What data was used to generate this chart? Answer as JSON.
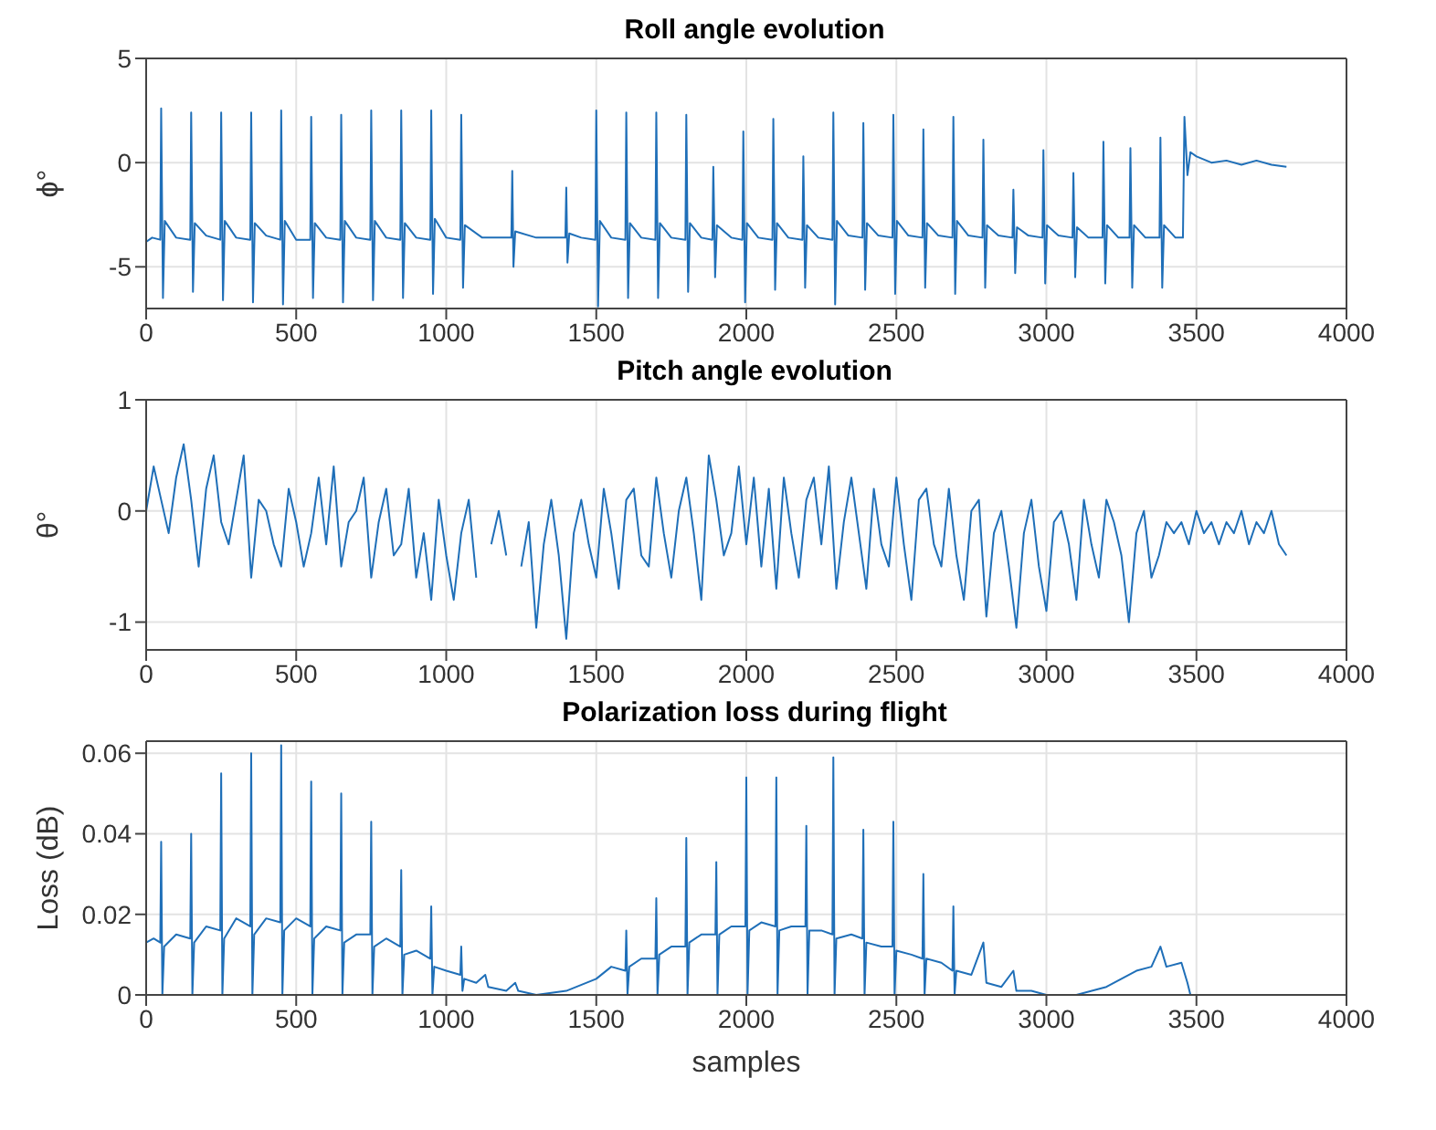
{
  "chart_data": [
    {
      "type": "line",
      "title": "Roll angle evolution",
      "ylabel": "ϕ°",
      "xlim": [
        0,
        4000
      ],
      "xticks": [
        0,
        500,
        1000,
        1500,
        2000,
        2500,
        3000,
        3500,
        4000
      ],
      "ylim": [
        -7,
        5
      ],
      "yticks": [
        -5,
        0,
        5
      ],
      "grid": true,
      "series": [
        {
          "color": "#1f6fb8",
          "x": [
            0,
            20,
            47,
            50,
            56,
            62,
            100,
            147,
            150,
            156,
            162,
            200,
            247,
            250,
            256,
            262,
            300,
            347,
            350,
            356,
            362,
            400,
            447,
            450,
            456,
            462,
            500,
            547,
            550,
            556,
            562,
            600,
            647,
            650,
            656,
            662,
            700,
            747,
            750,
            756,
            762,
            800,
            847,
            850,
            856,
            862,
            900,
            947,
            950,
            956,
            962,
            1000,
            1047,
            1050,
            1056,
            1062,
            1120,
            1217,
            1220,
            1224,
            1230,
            1300,
            1397,
            1400,
            1404,
            1410,
            1450,
            1497,
            1500,
            1506,
            1512,
            1550,
            1597,
            1600,
            1606,
            1612,
            1650,
            1697,
            1700,
            1706,
            1712,
            1750,
            1797,
            1800,
            1806,
            1812,
            1850,
            1887,
            1890,
            1896,
            1902,
            1950,
            1987,
            1990,
            1996,
            2002,
            2040,
            2087,
            2090,
            2096,
            2102,
            2140,
            2187,
            2190,
            2196,
            2202,
            2240,
            2287,
            2290,
            2296,
            2302,
            2340,
            2387,
            2390,
            2396,
            2402,
            2440,
            2487,
            2490,
            2496,
            2502,
            2540,
            2587,
            2590,
            2596,
            2602,
            2640,
            2687,
            2690,
            2696,
            2702,
            2740,
            2787,
            2790,
            2796,
            2802,
            2840,
            2887,
            2890,
            2896,
            2902,
            2940,
            2987,
            2990,
            2996,
            3002,
            3040,
            3087,
            3090,
            3096,
            3102,
            3140,
            3187,
            3190,
            3196,
            3202,
            3240,
            3277,
            3280,
            3286,
            3292,
            3330,
            3377,
            3380,
            3386,
            3392,
            3430,
            3455,
            3460,
            3470,
            3480,
            3500,
            3550,
            3600,
            3650,
            3700,
            3750,
            3800
          ],
          "values": [
            -3.8,
            -3.6,
            -3.7,
            2.6,
            -6.5,
            -2.8,
            -3.6,
            -3.7,
            2.4,
            -6.2,
            -2.9,
            -3.5,
            -3.7,
            2.4,
            -6.6,
            -2.8,
            -3.6,
            -3.7,
            2.4,
            -6.7,
            -2.9,
            -3.5,
            -3.7,
            2.5,
            -6.8,
            -2.8,
            -3.7,
            -3.7,
            2.2,
            -6.5,
            -2.9,
            -3.6,
            -3.7,
            2.3,
            -6.7,
            -2.8,
            -3.6,
            -3.7,
            2.5,
            -6.6,
            -2.8,
            -3.6,
            -3.7,
            2.5,
            -6.5,
            -2.9,
            -3.6,
            -3.7,
            2.5,
            -6.3,
            -2.7,
            -3.6,
            -3.7,
            2.3,
            -6.0,
            -3.0,
            -3.6,
            -3.6,
            -0.4,
            -5.0,
            -3.3,
            -3.6,
            -3.6,
            -1.2,
            -4.8,
            -3.4,
            -3.6,
            -3.7,
            2.5,
            -6.9,
            -2.8,
            -3.6,
            -3.7,
            2.4,
            -6.5,
            -2.9,
            -3.6,
            -3.7,
            2.4,
            -6.5,
            -2.9,
            -3.6,
            -3.7,
            2.3,
            -6.2,
            -2.9,
            -3.6,
            -3.7,
            -0.2,
            -5.5,
            -3.0,
            -3.6,
            -3.7,
            1.5,
            -6.7,
            -2.9,
            -3.6,
            -3.7,
            2.1,
            -6.1,
            -2.9,
            -3.6,
            -3.7,
            0.3,
            -6.0,
            -3.0,
            -3.6,
            -3.7,
            2.4,
            -6.8,
            -2.8,
            -3.5,
            -3.6,
            1.9,
            -6.1,
            -2.9,
            -3.5,
            -3.6,
            2.3,
            -6.3,
            -2.8,
            -3.5,
            -3.6,
            1.6,
            -6.0,
            -2.9,
            -3.5,
            -3.6,
            2.2,
            -6.3,
            -2.8,
            -3.5,
            -3.6,
            1.1,
            -6.0,
            -3.0,
            -3.5,
            -3.6,
            -1.3,
            -5.3,
            -3.1,
            -3.5,
            -3.6,
            0.6,
            -5.8,
            -3.0,
            -3.5,
            -3.6,
            -0.5,
            -5.5,
            -3.1,
            -3.6,
            -3.6,
            1.0,
            -5.8,
            -3.0,
            -3.6,
            -3.6,
            0.7,
            -6.0,
            -3.0,
            -3.6,
            -3.6,
            1.2,
            -6.0,
            -3.0,
            -3.6,
            -3.6,
            2.2,
            -0.6,
            0.5,
            0.3,
            0.0,
            0.1,
            -0.1,
            0.1,
            -0.1,
            -0.2
          ]
        }
      ]
    },
    {
      "type": "line",
      "title": "Pitch angle evolution",
      "ylabel": "θ°",
      "xlim": [
        0,
        4000
      ],
      "xticks": [
        0,
        500,
        1000,
        1500,
        2000,
        2500,
        3000,
        3500,
        4000
      ],
      "ylim": [
        -1.25,
        1
      ],
      "yticks": [
        -1,
        0,
        1
      ],
      "grid": true,
      "series": [
        {
          "color": "#1f6fb8",
          "x": [
            0,
            25,
            50,
            75,
            100,
            125,
            150,
            175,
            200,
            225,
            250,
            275,
            300,
            325,
            350,
            375,
            400,
            425,
            450,
            475,
            500,
            525,
            550,
            575,
            600,
            625,
            650,
            675,
            700,
            725,
            750,
            775,
            800,
            825,
            850,
            875,
            900,
            925,
            950,
            975,
            1000,
            1025,
            1050,
            1075,
            1100,
            1125,
            1150,
            1175,
            1200,
            1225,
            1250,
            1275,
            1300,
            1325,
            1350,
            1375,
            1400,
            1425,
            1450,
            1475,
            1500,
            1525,
            1550,
            1575,
            1600,
            1625,
            1650,
            1675,
            1700,
            1725,
            1750,
            1775,
            1800,
            1825,
            1850,
            1875,
            1900,
            1925,
            1950,
            1975,
            2000,
            2025,
            2050,
            2075,
            2100,
            2125,
            2150,
            2175,
            2200,
            2225,
            2250,
            2275,
            2300,
            2325,
            2350,
            2375,
            2400,
            2425,
            2450,
            2475,
            2500,
            2525,
            2550,
            2575,
            2600,
            2625,
            2650,
            2675,
            2700,
            2725,
            2750,
            2775,
            2800,
            2825,
            2850,
            2875,
            2900,
            2925,
            2950,
            2975,
            3000,
            3025,
            3050,
            3075,
            3100,
            3125,
            3150,
            3175,
            3200,
            3225,
            3250,
            3275,
            3300,
            3325,
            3350,
            3375,
            3400,
            3425,
            3450,
            3475,
            3500,
            3525,
            3550,
            3575,
            3600,
            3625,
            3650,
            3675,
            3700,
            3725,
            3750,
            3775,
            3800
          ],
          "values": [
            0.0,
            0.4,
            0.1,
            -0.2,
            0.3,
            0.6,
            0.1,
            -0.5,
            0.2,
            0.5,
            -0.1,
            -0.3,
            0.1,
            0.5,
            -0.6,
            0.1,
            0.0,
            -0.3,
            -0.5,
            0.2,
            -0.1,
            -0.5,
            -0.2,
            0.3,
            -0.3,
            0.4,
            -0.5,
            -0.1,
            0.0,
            0.3,
            -0.6,
            -0.1,
            0.2,
            -0.4,
            -0.3,
            0.2,
            -0.6,
            -0.2,
            -0.8,
            0.1,
            -0.4,
            -0.8,
            -0.2,
            0.1,
            -0.6,
            null,
            -0.3,
            0.0,
            -0.4,
            null,
            -0.5,
            -0.1,
            -1.05,
            -0.3,
            0.1,
            -0.4,
            -1.15,
            -0.2,
            0.1,
            -0.3,
            -0.6,
            0.2,
            -0.2,
            -0.7,
            0.1,
            0.2,
            -0.4,
            -0.5,
            0.3,
            -0.2,
            -0.6,
            0.0,
            0.3,
            -0.2,
            -0.8,
            0.5,
            0.1,
            -0.4,
            -0.2,
            0.4,
            -0.3,
            0.3,
            -0.5,
            0.2,
            -0.7,
            0.3,
            -0.2,
            -0.6,
            0.1,
            0.3,
            -0.3,
            0.4,
            -0.7,
            -0.1,
            0.3,
            -0.2,
            -0.7,
            0.2,
            -0.3,
            -0.5,
            0.3,
            -0.3,
            -0.8,
            0.1,
            0.2,
            -0.3,
            -0.5,
            0.2,
            -0.4,
            -0.8,
            0.0,
            0.1,
            -0.95,
            -0.2,
            0.0,
            -0.5,
            -1.05,
            -0.2,
            0.1,
            -0.5,
            -0.9,
            -0.1,
            0.0,
            -0.3,
            -0.8,
            0.1,
            -0.3,
            -0.6,
            0.1,
            -0.1,
            -0.4,
            -1.0,
            -0.2,
            0.0,
            -0.6,
            -0.4,
            -0.1,
            -0.2,
            -0.1,
            -0.3,
            0.0,
            -0.2,
            -0.1,
            -0.3,
            -0.1,
            -0.2,
            0.0,
            -0.3,
            -0.1,
            -0.2,
            0.0,
            -0.3,
            -0.4
          ]
        }
      ]
    },
    {
      "type": "line",
      "title": "Polarization loss during flight",
      "xlabel": "samples",
      "ylabel": "Loss (dB)",
      "xlim": [
        0,
        4000
      ],
      "xticks": [
        0,
        500,
        1000,
        1500,
        2000,
        2500,
        3000,
        3500,
        4000
      ],
      "ylim": [
        0,
        0.063
      ],
      "yticks": [
        0,
        0.02,
        0.04,
        0.06
      ],
      "grid": true,
      "series": [
        {
          "color": "#1f6fb8",
          "x": [
            0,
            25,
            47,
            50,
            54,
            60,
            100,
            147,
            150,
            154,
            160,
            200,
            247,
            250,
            254,
            260,
            300,
            347,
            350,
            354,
            360,
            400,
            447,
            450,
            454,
            460,
            500,
            547,
            550,
            554,
            560,
            600,
            647,
            650,
            654,
            660,
            700,
            747,
            750,
            754,
            760,
            800,
            847,
            850,
            854,
            860,
            900,
            947,
            950,
            954,
            960,
            1000,
            1047,
            1050,
            1054,
            1060,
            1100,
            1130,
            1140,
            1200,
            1230,
            1240,
            1300,
            1400,
            1500,
            1550,
            1597,
            1600,
            1604,
            1610,
            1650,
            1697,
            1700,
            1704,
            1710,
            1750,
            1797,
            1800,
            1804,
            1810,
            1850,
            1897,
            1900,
            1904,
            1910,
            1950,
            1997,
            2000,
            2004,
            2010,
            2050,
            2097,
            2100,
            2104,
            2110,
            2150,
            2197,
            2200,
            2204,
            2210,
            2250,
            2287,
            2290,
            2294,
            2300,
            2350,
            2387,
            2390,
            2394,
            2400,
            2450,
            2487,
            2490,
            2494,
            2500,
            2550,
            2587,
            2590,
            2594,
            2600,
            2650,
            2687,
            2690,
            2694,
            2700,
            2750,
            2790,
            2800,
            2850,
            2890,
            2900,
            2950,
            3000,
            3100,
            3200,
            3250,
            3300,
            3350,
            3380,
            3400,
            3450,
            3470,
            3480,
            3800
          ],
          "values": [
            0.013,
            0.014,
            0.013,
            0.038,
            0,
            0.012,
            0.015,
            0.014,
            0.04,
            0,
            0.013,
            0.017,
            0.016,
            0.055,
            0,
            0.014,
            0.019,
            0.017,
            0.06,
            0,
            0.015,
            0.019,
            0.018,
            0.062,
            0,
            0.016,
            0.019,
            0.017,
            0.053,
            0,
            0.014,
            0.017,
            0.016,
            0.05,
            0,
            0.013,
            0.015,
            0.015,
            0.043,
            0,
            0.012,
            0.014,
            0.012,
            0.031,
            0,
            0.01,
            0.011,
            0.009,
            0.022,
            0,
            0.007,
            0.006,
            0.005,
            0.012,
            0.001,
            0.004,
            0.003,
            0.005,
            0.002,
            0.001,
            0.003,
            0.001,
            0,
            0.001,
            0.004,
            0.007,
            0.006,
            0.016,
            0,
            0.007,
            0.009,
            0.009,
            0.024,
            0,
            0.01,
            0.012,
            0.012,
            0.039,
            0,
            0.013,
            0.015,
            0.015,
            0.033,
            0,
            0.015,
            0.017,
            0.017,
            0.054,
            0,
            0.016,
            0.018,
            0.017,
            0.054,
            0,
            0.016,
            0.017,
            0.017,
            0.042,
            0,
            0.016,
            0.016,
            0.015,
            0.059,
            0,
            0.014,
            0.015,
            0.014,
            0.041,
            0,
            0.013,
            0.012,
            0.012,
            0.043,
            0,
            0.011,
            0.01,
            0.009,
            0.03,
            0,
            0.009,
            0.008,
            0.006,
            0.022,
            0,
            0.006,
            0.005,
            0.013,
            0.003,
            0.002,
            0.006,
            0.001,
            0.001,
            0,
            0,
            0.002,
            0.004,
            0.006,
            0.007,
            0.012,
            0.007,
            0.008,
            0.003,
            0,
            0
          ]
        }
      ]
    }
  ]
}
